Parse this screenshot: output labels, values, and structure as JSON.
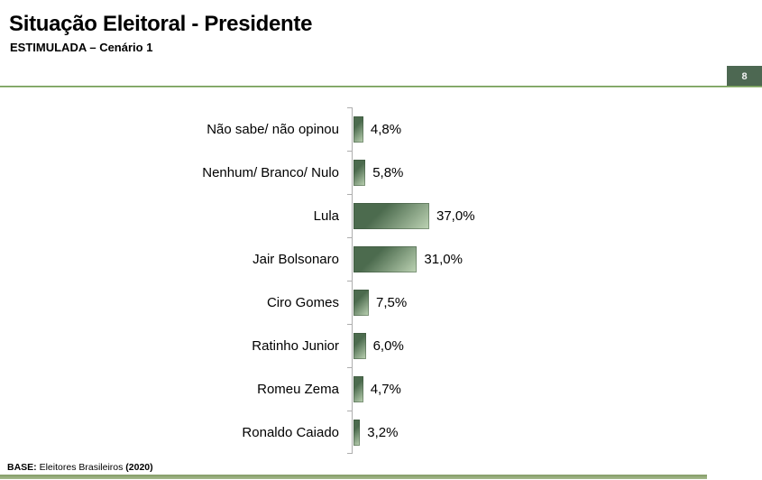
{
  "page": {
    "title": "Situação Eleitoral - Presidente",
    "subtitle": "ESTIMULADA – Cenário 1",
    "page_number": "8",
    "footer": {
      "base_label": "BASE:",
      "base_text": " Eleitores Brasileiros ",
      "base_year": "(2020)"
    }
  },
  "colors": {
    "bar_dark": "#4c6b4e",
    "bar_light": "#bed4b5",
    "badge_bg": "#4d6852",
    "header_line_dark": "#57863a",
    "header_line_light": "#b9d2a2",
    "bottom_bar_dark": "#849c66",
    "bottom_bar_light": "#a7ba8e",
    "axis": "#aeaeae"
  },
  "chart_data": {
    "type": "bar",
    "orientation": "horizontal",
    "title": "Situação Eleitoral - Presidente",
    "subtitle": "ESTIMULADA – Cenário 1",
    "categories": [
      "Não sabe/ não opinou",
      "Nenhum/ Branco/ Nulo",
      "Lula",
      "Jair Bolsonaro",
      "Ciro Gomes",
      "Ratinho Junior",
      "Romeu Zema",
      "Ronaldo Caiado"
    ],
    "values": [
      4.8,
      5.8,
      37.0,
      31.0,
      7.5,
      6.0,
      4.7,
      3.2
    ],
    "value_labels": [
      "4,8%",
      "5,8%",
      "37,0%",
      "31,0%",
      "7,5%",
      "6,0%",
      "4,7%",
      "3,2%"
    ],
    "unit": "%",
    "xlim": [
      0,
      40
    ],
    "grid": false,
    "legend": false,
    "data_labels": "outside-end"
  }
}
